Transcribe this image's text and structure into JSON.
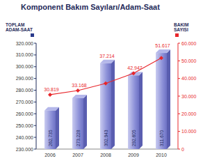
{
  "chart_data": {
    "type": "bar",
    "title": "Komponent Bakım Sayıları/Adam-Saat",
    "y_label": "TOPLAM ADAM-SAAT",
    "y2_label": "BAKIM SAYISI",
    "categories": [
      "2006",
      "2007",
      "2008",
      "2009",
      "2010"
    ],
    "series": [
      {
        "name": "TOPLAM ADAM-SAAT",
        "type": "bar",
        "color": "#8d91d8",
        "values": [
          262735,
          273228,
          302943,
          292605,
          311670
        ],
        "value_labels": [
          "262.735",
          "273.228",
          "302.943",
          "292.605",
          "311.670"
        ]
      },
      {
        "name": "BAKIM SAYISI",
        "type": "line",
        "axis": "y2",
        "color": "#e8262b",
        "marker": "diamond",
        "line_style": "solid",
        "values": [
          30819,
          33168,
          37214,
          42947,
          51617
        ],
        "value_labels": [
          "30.819",
          "33.168",
          "37.214",
          "42.947",
          "51.617"
        ]
      }
    ],
    "ylim": [
      230000,
      320000
    ],
    "yticks": [
      {
        "value": 230000,
        "label": "230.000"
      },
      {
        "value": 240000,
        "label": "240.000"
      },
      {
        "value": 250000,
        "label": "250.000"
      },
      {
        "value": 260000,
        "label": "260.000"
      },
      {
        "value": 270000,
        "label": "270.000"
      },
      {
        "value": 280000,
        "label": "280.000"
      },
      {
        "value": 290000,
        "label": "290.000"
      },
      {
        "value": 300000,
        "label": "300.000"
      },
      {
        "value": 310000,
        "label": "310.000"
      },
      {
        "value": 320000,
        "label": "320.000"
      }
    ],
    "y2lim": [
      0,
      60000
    ],
    "y2ticks": [
      0,
      {
        "value": 10000,
        "label": "10.000"
      },
      {
        "value": 20000,
        "label": "20.000"
      },
      {
        "value": 30000,
        "label": "30.000"
      },
      {
        "value": 40000,
        "label": "40.000"
      },
      {
        "value": 50000,
        "label": "50.000"
      },
      {
        "value": 60000,
        "label": "60.000"
      }
    ],
    "grid": false,
    "data_labels": true
  }
}
